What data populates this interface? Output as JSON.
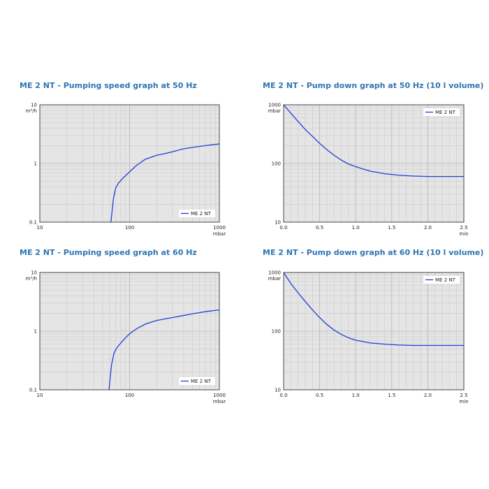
{
  "chart_data": [
    {
      "type": "line",
      "title": "ME 2 NT - Pumping speed graph at 50 Hz",
      "xlabel": "",
      "x_unit": "mbar",
      "ylabel": "",
      "y_unit": "m³/h",
      "xscale": "log",
      "yscale": "log",
      "xlim": [
        10,
        1000
      ],
      "ylim": [
        0.1,
        10
      ],
      "x_ticks": [
        "10",
        "100",
        "1000"
      ],
      "y_ticks": [
        "0.1",
        "1",
        "10"
      ],
      "grid": true,
      "legend": "bottom-right",
      "series": [
        {
          "name": "ME 2 NT",
          "color": "#1f3fd6",
          "points": [
            [
              62,
              0.1
            ],
            [
              64,
              0.16
            ],
            [
              66,
              0.25
            ],
            [
              70,
              0.38
            ],
            [
              75,
              0.46
            ],
            [
              85,
              0.57
            ],
            [
              100,
              0.72
            ],
            [
              120,
              0.93
            ],
            [
              150,
              1.18
            ],
            [
              200,
              1.38
            ],
            [
              250,
              1.48
            ],
            [
              300,
              1.58
            ],
            [
              400,
              1.78
            ],
            [
              500,
              1.88
            ],
            [
              700,
              2.02
            ],
            [
              1000,
              2.15
            ]
          ]
        }
      ]
    },
    {
      "type": "line",
      "title": "ME 2 NT - Pump down graph at 50 Hz (10 l volume)",
      "xlabel": "",
      "x_unit": "min",
      "ylabel": "",
      "y_unit": "mbar",
      "xscale": "linear",
      "yscale": "log",
      "xlim": [
        0,
        2.5
      ],
      "ylim": [
        10,
        1000
      ],
      "x_ticks": [
        "0.0",
        "0.5",
        "1.0",
        "1.5",
        "2.0",
        "2.5"
      ],
      "y_ticks": [
        "10",
        "100",
        "1000"
      ],
      "grid": true,
      "legend": "top-right",
      "series": [
        {
          "name": "ME 2 NT",
          "color": "#1f3fd6",
          "points": [
            [
              0,
              1000
            ],
            [
              0.1,
              720
            ],
            [
              0.2,
              520
            ],
            [
              0.3,
              380
            ],
            [
              0.4,
              290
            ],
            [
              0.5,
              220
            ],
            [
              0.6,
              172
            ],
            [
              0.7,
              138
            ],
            [
              0.8,
              114
            ],
            [
              0.9,
              98
            ],
            [
              1.0,
              88
            ],
            [
              1.2,
              74
            ],
            [
              1.4,
              67
            ],
            [
              1.6,
              63
            ],
            [
              1.8,
              61
            ],
            [
              2.0,
              60
            ],
            [
              2.5,
              60
            ]
          ]
        }
      ]
    },
    {
      "type": "line",
      "title": "ME 2 NT - Pumping speed graph at 60 Hz",
      "xlabel": "",
      "x_unit": "mbar",
      "ylabel": "",
      "y_unit": "m³/h",
      "xscale": "log",
      "yscale": "log",
      "xlim": [
        10,
        1000
      ],
      "ylim": [
        0.1,
        10
      ],
      "x_ticks": [
        "10",
        "100",
        "1000"
      ],
      "y_ticks": [
        "0.1",
        "1",
        "10"
      ],
      "grid": true,
      "legend": "bottom-right",
      "series": [
        {
          "name": "ME 2 NT",
          "color": "#1f3fd6",
          "points": [
            [
              59,
              0.1
            ],
            [
              61,
              0.17
            ],
            [
              63,
              0.27
            ],
            [
              67,
              0.42
            ],
            [
              72,
              0.52
            ],
            [
              80,
              0.63
            ],
            [
              90,
              0.77
            ],
            [
              100,
              0.9
            ],
            [
              120,
              1.1
            ],
            [
              150,
              1.32
            ],
            [
              200,
              1.52
            ],
            [
              250,
              1.62
            ],
            [
              300,
              1.7
            ],
            [
              400,
              1.85
            ],
            [
              500,
              1.97
            ],
            [
              700,
              2.15
            ],
            [
              1000,
              2.3
            ]
          ]
        }
      ]
    },
    {
      "type": "line",
      "title": "ME 2 NT - Pump down graph at 60 Hz (10 l volume)",
      "xlabel": "",
      "x_unit": "min",
      "ylabel": "",
      "y_unit": "mbar",
      "xscale": "linear",
      "yscale": "log",
      "xlim": [
        0,
        2.5
      ],
      "ylim": [
        10,
        1000
      ],
      "x_ticks": [
        "0.0",
        "0.5",
        "1.0",
        "1.5",
        "2.0",
        "2.5"
      ],
      "y_ticks": [
        "10",
        "100",
        "1000"
      ],
      "grid": true,
      "legend": "top-right",
      "series": [
        {
          "name": "ME 2 NT",
          "color": "#1f3fd6",
          "points": [
            [
              0,
              1000
            ],
            [
              0.1,
              650
            ],
            [
              0.2,
              450
            ],
            [
              0.3,
              320
            ],
            [
              0.4,
              230
            ],
            [
              0.5,
              170
            ],
            [
              0.6,
              130
            ],
            [
              0.7,
              104
            ],
            [
              0.8,
              88
            ],
            [
              0.9,
              77
            ],
            [
              1.0,
              70
            ],
            [
              1.2,
              63
            ],
            [
              1.4,
              60
            ],
            [
              1.6,
              58
            ],
            [
              1.8,
              57
            ],
            [
              2.0,
              57
            ],
            [
              2.5,
              57
            ]
          ]
        }
      ]
    }
  ]
}
